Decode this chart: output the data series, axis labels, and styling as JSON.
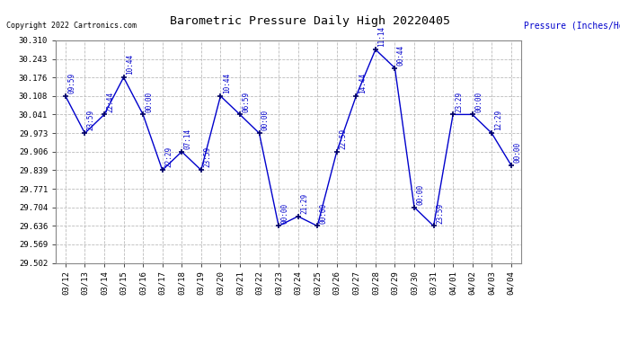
{
  "title": "Barometric Pressure Daily High 20220405",
  "copyright": "Copyright 2022 Cartronics.com",
  "ylabel": "Pressure (Inches/Hg)",
  "dates": [
    "03/12",
    "03/13",
    "03/14",
    "03/15",
    "03/16",
    "03/17",
    "03/18",
    "03/19",
    "03/20",
    "03/21",
    "03/22",
    "03/23",
    "03/24",
    "03/25",
    "03/26",
    "03/27",
    "03/28",
    "03/29",
    "03/30",
    "03/31",
    "04/01",
    "04/02",
    "04/03",
    "04/04"
  ],
  "pressures": [
    30.108,
    29.973,
    30.041,
    30.176,
    30.041,
    29.839,
    29.906,
    29.839,
    30.108,
    30.041,
    29.973,
    29.636,
    29.671,
    29.636,
    29.906,
    30.108,
    30.277,
    30.21,
    29.704,
    29.636,
    30.041,
    30.041,
    29.973,
    29.857
  ],
  "time_labels": [
    "09:59",
    "23:59",
    "22:44",
    "10:44",
    "00:00",
    "22:29",
    "07:14",
    "23:59",
    "10:44",
    "06:59",
    "00:00",
    "00:00",
    "21:29",
    "00:00",
    "22:59",
    "14:44",
    "11:14",
    "00:44",
    "00:00",
    "23:59",
    "23:29",
    "00:00",
    "12:29",
    "00:00"
  ],
  "ylim_min": 29.502,
  "ylim_max": 30.31,
  "yticks": [
    29.502,
    29.569,
    29.636,
    29.704,
    29.771,
    29.839,
    29.906,
    29.973,
    30.041,
    30.108,
    30.176,
    30.243,
    30.31
  ],
  "line_color": "#0000cc",
  "marker_color": "#000066",
  "label_color": "#0000cc",
  "bg_color": "#ffffff",
  "grid_color": "#bbbbbb",
  "title_color": "#000000",
  "copyright_color": "#000000",
  "ylabel_color": "#0000cc"
}
